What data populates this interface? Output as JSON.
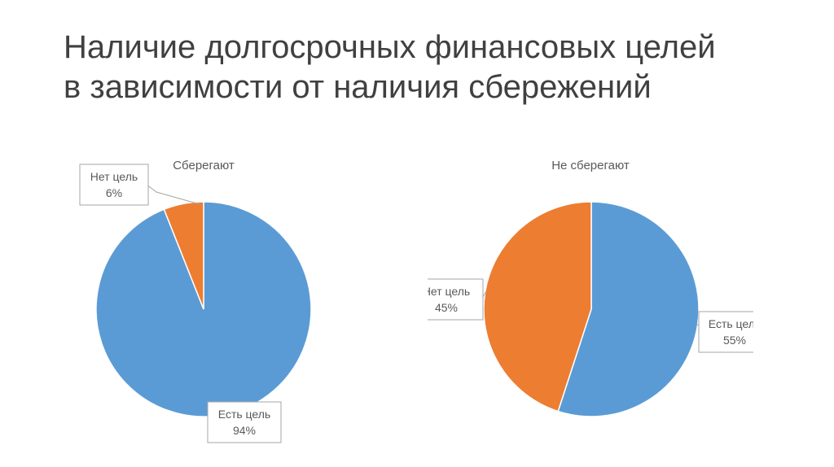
{
  "slide": {
    "title_lines": [
      "Наличие долгосрочных финансовых целей",
      "в зависимости от наличия сбережений"
    ]
  },
  "chart_data": [
    {
      "type": "pie",
      "title": "Сберегают",
      "start_angle_deg": 0,
      "direction": "clockwise",
      "slices": [
        {
          "label": "Есть цель",
          "value": 94,
          "display": "94%",
          "color": "#5b9bd5"
        },
        {
          "label": "Нет цель",
          "value": 6,
          "display": "6%",
          "color": "#ed7d31"
        }
      ]
    },
    {
      "type": "pie",
      "title": "Не сберегают",
      "start_angle_deg": 0,
      "direction": "clockwise",
      "slices": [
        {
          "label": "Есть цель",
          "value": 55,
          "display": "55%",
          "color": "#5b9bd5"
        },
        {
          "label": "Нет цель",
          "value": 45,
          "display": "45%",
          "color": "#ed7d31"
        }
      ]
    }
  ]
}
